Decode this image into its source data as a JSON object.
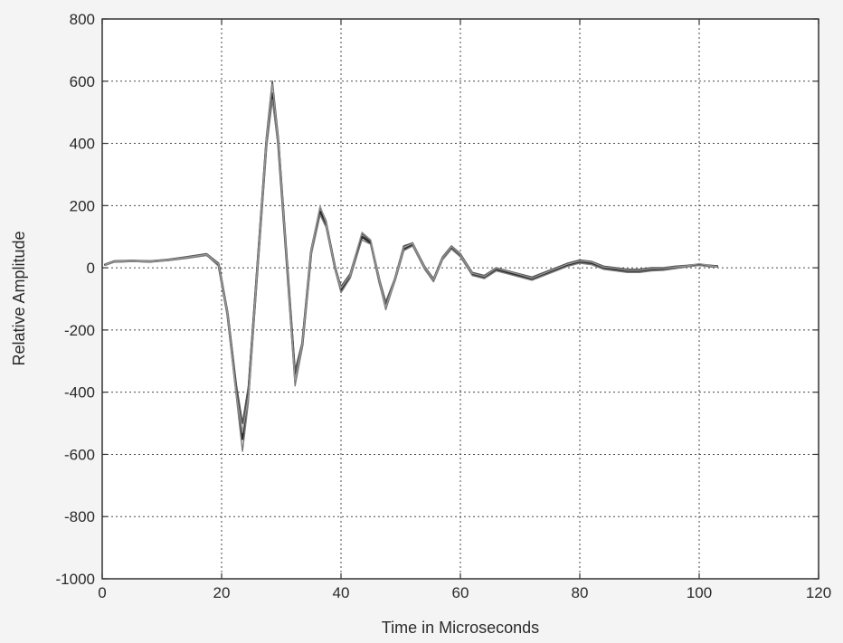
{
  "chart_data": {
    "type": "line",
    "title": "",
    "xlabel": "Time in Microseconds",
    "ylabel": "Relative Amplitude",
    "xlim": [
      0,
      120
    ],
    "ylim": [
      -1000,
      800
    ],
    "grid": true,
    "x_ticks": [
      0,
      20,
      40,
      60,
      80,
      100,
      120
    ],
    "y_ticks": [
      -1000,
      -800,
      -600,
      -400,
      -200,
      0,
      200,
      400,
      600,
      800
    ],
    "x_tick_labels": [
      "0",
      "20",
      "40",
      "60",
      "80",
      "100",
      "120"
    ],
    "y_tick_labels": [
      "-1000",
      "-800",
      "-600",
      "-400",
      "-200",
      "0",
      "200",
      "400",
      "600",
      "800"
    ],
    "colors": [
      "#2b2b2b",
      "#555555",
      "#7a7a7a",
      "#999999"
    ],
    "x": [
      0.5,
      2,
      5,
      8,
      11,
      14,
      17.5,
      19.5,
      21,
      22.5,
      23.5,
      24.5,
      26,
      27.5,
      28.5,
      29.5,
      31,
      32.3,
      33.5,
      35,
      36.5,
      37.5,
      39,
      40,
      41.5,
      43.5,
      45,
      46.5,
      47.5,
      49,
      50.5,
      52,
      54,
      55.5,
      57,
      58.5,
      60,
      62,
      64,
      66,
      68,
      70,
      72,
      74,
      76,
      78,
      80,
      82,
      84,
      86,
      88,
      90,
      92,
      94,
      96,
      98,
      100,
      102,
      103
    ],
    "series": [
      {
        "values": [
          10,
          20,
          22,
          20,
          25,
          32,
          42,
          10,
          -150,
          -400,
          -550,
          -400,
          0,
          400,
          560,
          400,
          0,
          -350,
          -250,
          50,
          180,
          140,
          0,
          -70,
          -30,
          100,
          80,
          -50,
          -120,
          -40,
          60,
          75,
          0,
          -40,
          30,
          65,
          40,
          -20,
          -30,
          -5,
          -15,
          -25,
          -35,
          -20,
          -5,
          10,
          20,
          15,
          0,
          -5,
          -10,
          -10,
          -5,
          -5,
          0,
          5,
          10,
          5,
          5
        ]
      },
      {
        "values": [
          12,
          22,
          24,
          22,
          27,
          35,
          45,
          15,
          -140,
          -380,
          -500,
          -380,
          20,
          420,
          600,
          420,
          10,
          -330,
          -240,
          60,
          195,
          150,
          5,
          -60,
          -20,
          110,
          85,
          -40,
          -110,
          -35,
          70,
          80,
          5,
          -35,
          35,
          70,
          45,
          -15,
          -25,
          0,
          -10,
          -20,
          -30,
          -15,
          0,
          15,
          25,
          20,
          5,
          0,
          -5,
          -5,
          0,
          0,
          5,
          8,
          12,
          8,
          6
        ]
      },
      {
        "values": [
          8,
          18,
          20,
          19,
          23,
          30,
          40,
          5,
          -160,
          -420,
          -590,
          -430,
          -20,
          380,
          540,
          390,
          -10,
          -380,
          -260,
          40,
          170,
          130,
          -5,
          -80,
          -35,
          90,
          75,
          -55,
          -135,
          -45,
          55,
          70,
          -5,
          -45,
          25,
          60,
          35,
          -25,
          -35,
          -10,
          -20,
          -30,
          -40,
          -25,
          -10,
          5,
          15,
          10,
          -5,
          -10,
          -15,
          -15,
          -10,
          -8,
          -3,
          3,
          8,
          3,
          3
        ]
      },
      {
        "values": [
          11,
          21,
          23,
          21,
          26,
          33,
          43,
          12,
          -145,
          -410,
          -530,
          -410,
          10,
          410,
          590,
          410,
          5,
          -360,
          -245,
          55,
          200,
          145,
          0,
          -65,
          -25,
          115,
          90,
          -45,
          -125,
          -38,
          65,
          78,
          2,
          -38,
          32,
          68,
          42,
          -18,
          -28,
          -2,
          -12,
          -22,
          -33,
          -18,
          -3,
          12,
          22,
          18,
          2,
          -2,
          -8,
          -8,
          -3,
          -2,
          2,
          6,
          14,
          6,
          4
        ]
      }
    ]
  }
}
